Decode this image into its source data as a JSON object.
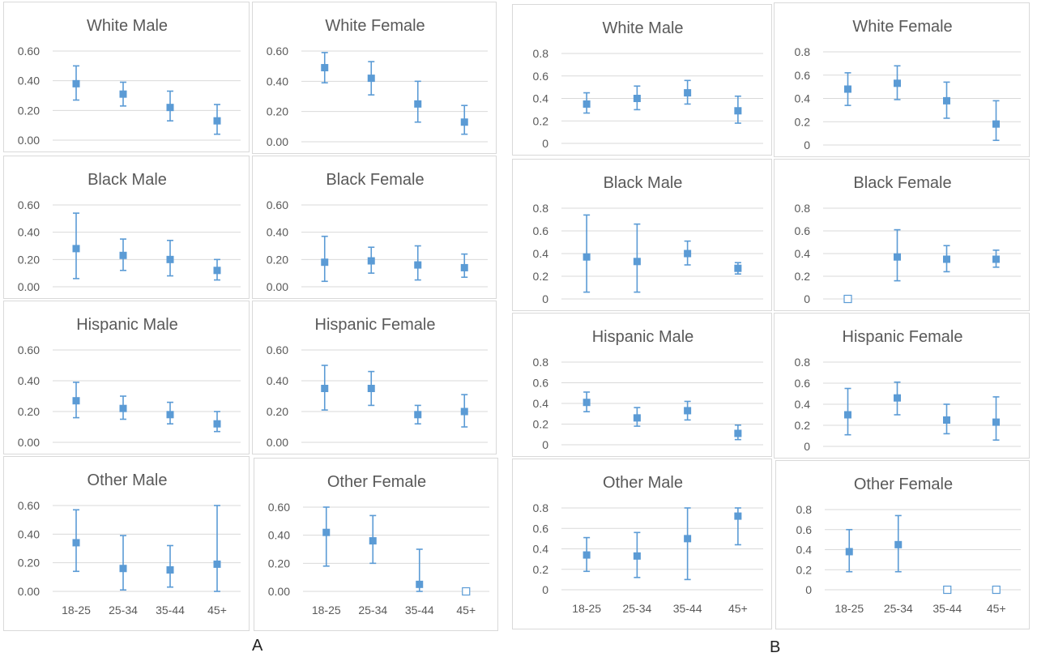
{
  "figure_labels": {
    "a": "A",
    "b": "B"
  },
  "style": {
    "marker_color": "#5B9BD5",
    "grid_color": "#d9d9d9",
    "title_color": "#595959",
    "tick_color": "#595959"
  },
  "chart_data": [
    {
      "id": "A1",
      "type": "scatter",
      "title": "White Male",
      "categories": [
        "18-25",
        "25-34",
        "35-44",
        "45+"
      ],
      "values": [
        0.38,
        0.31,
        0.22,
        0.13
      ],
      "lower": [
        0.27,
        0.23,
        0.13,
        0.04
      ],
      "upper": [
        0.5,
        0.39,
        0.33,
        0.24
      ],
      "hollow": [
        false,
        false,
        false,
        false
      ],
      "ylim": [
        0,
        0.6
      ],
      "yticks": [
        "0.00",
        "0.20",
        "0.40",
        "0.60"
      ],
      "show_xticks": false
    },
    {
      "id": "A2",
      "type": "scatter",
      "title": "White Female",
      "categories": [
        "18-25",
        "25-34",
        "35-44",
        "45+"
      ],
      "values": [
        0.49,
        0.42,
        0.25,
        0.13
      ],
      "lower": [
        0.39,
        0.31,
        0.13,
        0.05
      ],
      "upper": [
        0.59,
        0.53,
        0.4,
        0.24
      ],
      "hollow": [
        false,
        false,
        false,
        false
      ],
      "ylim": [
        0,
        0.6
      ],
      "yticks": [
        "0.00",
        "0.20",
        "0.40",
        "0.60"
      ],
      "show_xticks": false
    },
    {
      "id": "A3",
      "type": "scatter",
      "title": "Black Male",
      "categories": [
        "18-25",
        "25-34",
        "35-44",
        "45+"
      ],
      "values": [
        0.28,
        0.23,
        0.2,
        0.12
      ],
      "lower": [
        0.06,
        0.12,
        0.08,
        0.05
      ],
      "upper": [
        0.54,
        0.35,
        0.34,
        0.2
      ],
      "hollow": [
        false,
        false,
        false,
        false
      ],
      "ylim": [
        0,
        0.6
      ],
      "yticks": [
        "0.00",
        "0.20",
        "0.40",
        "0.60"
      ],
      "show_xticks": false
    },
    {
      "id": "A4",
      "type": "scatter",
      "title": "Black Female",
      "categories": [
        "18-25",
        "25-34",
        "35-44",
        "45+"
      ],
      "values": [
        0.18,
        0.19,
        0.16,
        0.14
      ],
      "lower": [
        0.04,
        0.1,
        0.05,
        0.07
      ],
      "upper": [
        0.37,
        0.29,
        0.3,
        0.24
      ],
      "hollow": [
        false,
        false,
        false,
        false
      ],
      "ylim": [
        0,
        0.6
      ],
      "yticks": [
        "0.00",
        "0.20",
        "0.40",
        "0.60"
      ],
      "show_xticks": false
    },
    {
      "id": "A5",
      "type": "scatter",
      "title": "Hispanic Male",
      "categories": [
        "18-25",
        "25-34",
        "35-44",
        "45+"
      ],
      "values": [
        0.27,
        0.22,
        0.18,
        0.12
      ],
      "lower": [
        0.16,
        0.15,
        0.12,
        0.07
      ],
      "upper": [
        0.39,
        0.3,
        0.26,
        0.2
      ],
      "hollow": [
        false,
        false,
        false,
        false
      ],
      "ylim": [
        0,
        0.6
      ],
      "yticks": [
        "0.00",
        "0.20",
        "0.40",
        "0.60"
      ],
      "show_xticks": false
    },
    {
      "id": "A6",
      "type": "scatter",
      "title": "Hispanic Female",
      "categories": [
        "18-25",
        "25-34",
        "35-44",
        "45+"
      ],
      "values": [
        0.35,
        0.35,
        0.18,
        0.2
      ],
      "lower": [
        0.21,
        0.24,
        0.12,
        0.1
      ],
      "upper": [
        0.5,
        0.46,
        0.24,
        0.31
      ],
      "hollow": [
        false,
        false,
        false,
        false
      ],
      "ylim": [
        0,
        0.6
      ],
      "yticks": [
        "0.00",
        "0.20",
        "0.40",
        "0.60"
      ],
      "show_xticks": false
    },
    {
      "id": "A7",
      "type": "scatter",
      "title": "Other Male",
      "categories": [
        "18-25",
        "25-34",
        "35-44",
        "45+"
      ],
      "values": [
        0.34,
        0.16,
        0.15,
        0.19
      ],
      "lower": [
        0.14,
        0.01,
        0.03,
        0.0
      ],
      "upper": [
        0.57,
        0.39,
        0.32,
        0.6
      ],
      "hollow": [
        false,
        false,
        false,
        false
      ],
      "ylim": [
        0,
        0.6
      ],
      "yticks": [
        "0.00",
        "0.20",
        "0.40",
        "0.60"
      ],
      "show_xticks": true
    },
    {
      "id": "A8",
      "type": "scatter",
      "title": "Other Female",
      "categories": [
        "18-25",
        "25-34",
        "35-44",
        "45+"
      ],
      "values": [
        0.42,
        0.36,
        0.05,
        0.0
      ],
      "lower": [
        0.18,
        0.2,
        0.0,
        0.0
      ],
      "upper": [
        0.6,
        0.54,
        0.3,
        0.0
      ],
      "hollow": [
        false,
        false,
        false,
        true
      ],
      "ylim": [
        0,
        0.6
      ],
      "yticks": [
        "0.00",
        "0.20",
        "0.40",
        "0.60"
      ],
      "show_xticks": true
    },
    {
      "id": "B1",
      "type": "scatter",
      "title": "White Male",
      "categories": [
        "18-25",
        "25-34",
        "35-44",
        "45+"
      ],
      "values": [
        0.35,
        0.4,
        0.45,
        0.29
      ],
      "lower": [
        0.27,
        0.3,
        0.35,
        0.18
      ],
      "upper": [
        0.45,
        0.51,
        0.56,
        0.42
      ],
      "hollow": [
        false,
        false,
        false,
        false
      ],
      "ylim": [
        0,
        0.8
      ],
      "yticks": [
        "0",
        "0.2",
        "0.4",
        "0.6",
        "0.8"
      ],
      "show_xticks": false
    },
    {
      "id": "B2",
      "type": "scatter",
      "title": "White Female",
      "categories": [
        "18-25",
        "25-34",
        "35-44",
        "45+"
      ],
      "values": [
        0.48,
        0.53,
        0.38,
        0.18
      ],
      "lower": [
        0.34,
        0.39,
        0.23,
        0.04
      ],
      "upper": [
        0.62,
        0.68,
        0.54,
        0.38
      ],
      "hollow": [
        false,
        false,
        false,
        false
      ],
      "ylim": [
        0,
        0.8
      ],
      "yticks": [
        "0",
        "0.2",
        "0.4",
        "0.6",
        "0.8"
      ],
      "show_xticks": false
    },
    {
      "id": "B3",
      "type": "scatter",
      "title": "Black Male",
      "categories": [
        "18-25",
        "25-34",
        "35-44",
        "45+"
      ],
      "values": [
        0.37,
        0.33,
        0.4,
        0.27
      ],
      "lower": [
        0.06,
        0.06,
        0.3,
        0.22
      ],
      "upper": [
        0.74,
        0.66,
        0.51,
        0.32
      ],
      "hollow": [
        false,
        false,
        false,
        false
      ],
      "ylim": [
        0,
        0.8
      ],
      "yticks": [
        "0",
        "0.2",
        "0.4",
        "0.6",
        "0.8"
      ],
      "show_xticks": false
    },
    {
      "id": "B4",
      "type": "scatter",
      "title": "Black Female",
      "categories": [
        "18-25",
        "25-34",
        "35-44",
        "45+"
      ],
      "values": [
        0.0,
        0.37,
        0.35,
        0.35
      ],
      "lower": [
        0.0,
        0.16,
        0.24,
        0.28
      ],
      "upper": [
        0.0,
        0.61,
        0.47,
        0.43
      ],
      "hollow": [
        true,
        false,
        false,
        false
      ],
      "ylim": [
        0,
        0.8
      ],
      "yticks": [
        "0",
        "0.2",
        "0.4",
        "0.6",
        "0.8"
      ],
      "show_xticks": false
    },
    {
      "id": "B5",
      "type": "scatter",
      "title": "Hispanic Male",
      "categories": [
        "18-25",
        "25-34",
        "35-44",
        "45+"
      ],
      "values": [
        0.41,
        0.26,
        0.33,
        0.11
      ],
      "lower": [
        0.32,
        0.18,
        0.24,
        0.05
      ],
      "upper": [
        0.51,
        0.36,
        0.42,
        0.19
      ],
      "hollow": [
        false,
        false,
        false,
        false
      ],
      "ylim": [
        0,
        0.8
      ],
      "yticks": [
        "0",
        "0.2",
        "0.4",
        "0.6",
        "0.8"
      ],
      "show_xticks": false
    },
    {
      "id": "B6",
      "type": "scatter",
      "title": "Hispanic Female",
      "categories": [
        "18-25",
        "25-34",
        "35-44",
        "45+"
      ],
      "values": [
        0.3,
        0.46,
        0.25,
        0.23
      ],
      "lower": [
        0.11,
        0.3,
        0.12,
        0.06
      ],
      "upper": [
        0.55,
        0.61,
        0.4,
        0.47
      ],
      "hollow": [
        false,
        false,
        false,
        false
      ],
      "ylim": [
        0,
        0.8
      ],
      "yticks": [
        "0",
        "0.2",
        "0.4",
        "0.6",
        "0.8"
      ],
      "show_xticks": false
    },
    {
      "id": "B7",
      "type": "scatter",
      "title": "Other Male",
      "categories": [
        "18-25",
        "25-34",
        "35-44",
        "45+"
      ],
      "values": [
        0.34,
        0.33,
        0.5,
        0.72
      ],
      "lower": [
        0.18,
        0.12,
        0.1,
        0.44
      ],
      "upper": [
        0.51,
        0.56,
        0.8,
        0.8
      ],
      "hollow": [
        false,
        false,
        false,
        false
      ],
      "ylim": [
        0,
        0.8
      ],
      "yticks": [
        "0",
        "0.2",
        "0.4",
        "0.6",
        "0.8"
      ],
      "show_xticks": true
    },
    {
      "id": "B8",
      "type": "scatter",
      "title": "Other Female",
      "categories": [
        "18-25",
        "25-34",
        "35-44",
        "45+"
      ],
      "values": [
        0.38,
        0.45,
        0.0,
        0.0
      ],
      "lower": [
        0.18,
        0.18,
        0.0,
        0.0
      ],
      "upper": [
        0.6,
        0.74,
        0.0,
        0.0
      ],
      "hollow": [
        false,
        false,
        true,
        true
      ],
      "ylim": [
        0,
        0.8
      ],
      "yticks": [
        "0",
        "0.2",
        "0.4",
        "0.6",
        "0.8"
      ],
      "show_xticks": true
    }
  ]
}
